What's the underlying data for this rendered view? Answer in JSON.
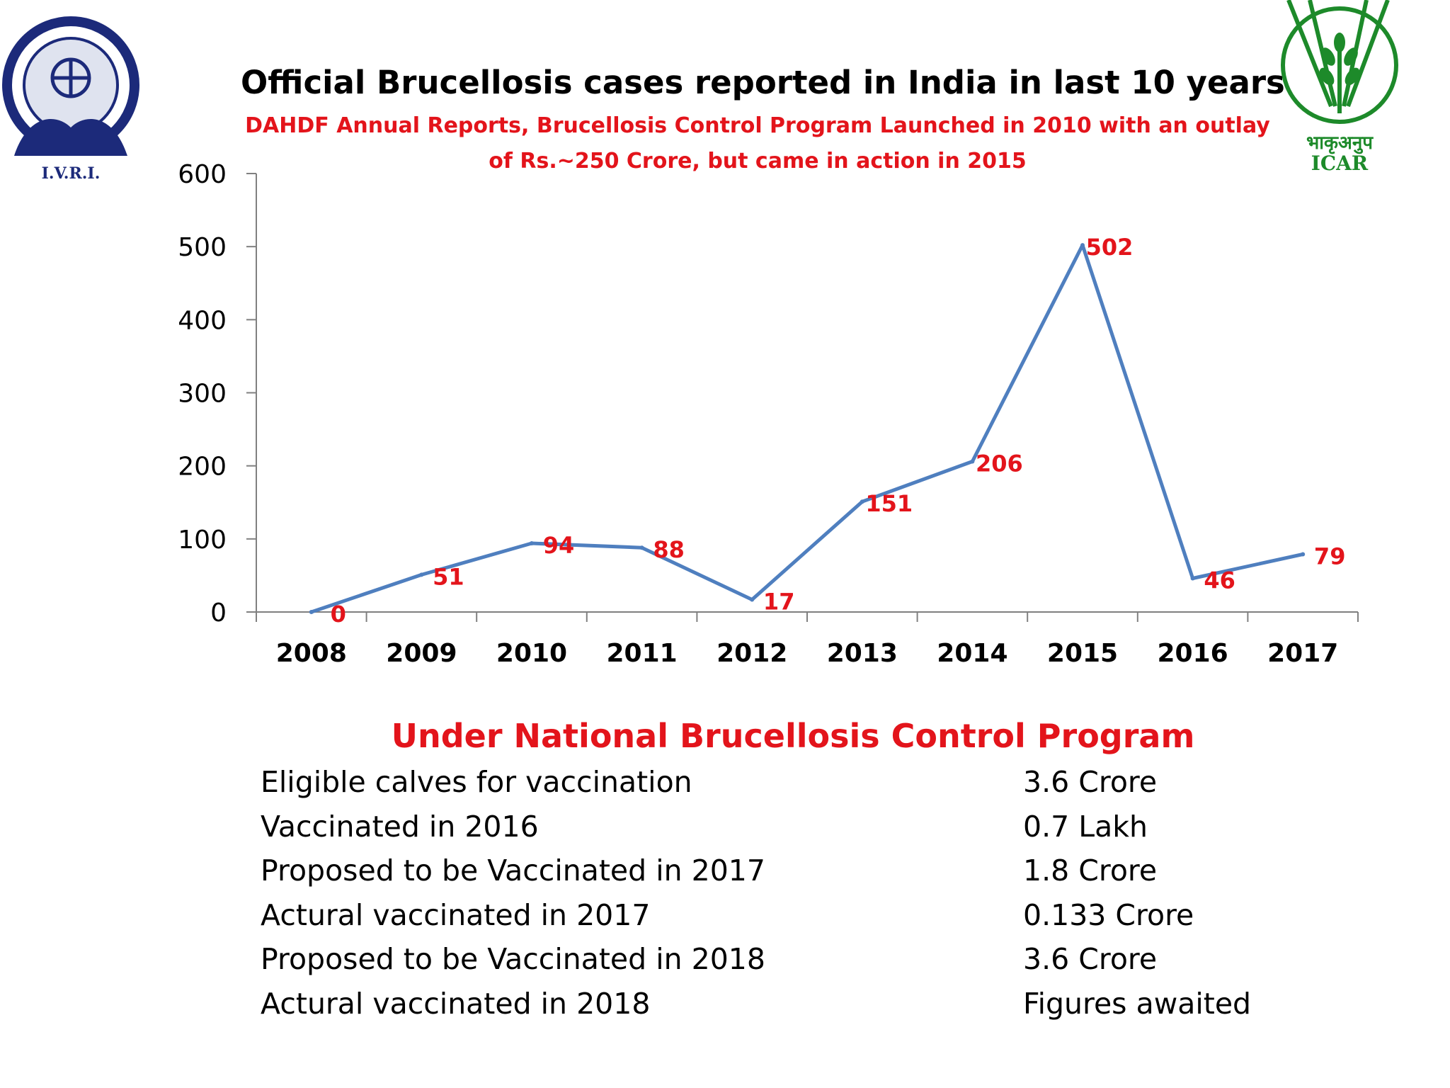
{
  "slide": {
    "title": "Official Brucellosis cases reported in India in last 10 years",
    "subtitle_line1": "DAHDF Annual Reports, Brucellosis Control Program Launched in 2010 with an outlay",
    "subtitle_line2": "of  Rs.~250 Crore, but came in action in 2015"
  },
  "logos": {
    "left": {
      "text": "I.V.R.I."
    },
    "right": {
      "devanagari": "भाकृअनुप",
      "text": "ICAR"
    }
  },
  "chart_data": {
    "type": "line",
    "title": "Official Brucellosis cases reported in India in last 10 years",
    "categories": [
      "2008",
      "2009",
      "2010",
      "2011",
      "2012",
      "2013",
      "2014",
      "2015",
      "2016",
      "2017"
    ],
    "series": [
      {
        "values": [
          0,
          51,
          94,
          88,
          17,
          151,
          206,
          502,
          46,
          79
        ]
      }
    ],
    "data_labels": [
      "0",
      "51",
      "94",
      "88",
      "17",
      "151",
      "206",
      "502",
      "46",
      "79"
    ],
    "ylim": [
      0,
      600
    ],
    "yticks": [
      "0",
      "100",
      "200",
      "300",
      "400",
      "500",
      "600"
    ],
    "xlabel": "",
    "ylabel": "",
    "grid": false,
    "line_color": "#4f7fbf",
    "label_color": "#e3141b"
  },
  "program": {
    "heading": "Under National Brucellosis Control Program",
    "rows": [
      {
        "label": "Eligible calves for vaccination",
        "value": "3.6 Crore"
      },
      {
        "label": "Vaccinated in 2016",
        "value": "0.7 Lakh"
      },
      {
        "label": "Proposed to be Vaccinated in 2017",
        "value": "1.8 Crore"
      },
      {
        "label": "Actural vaccinated in 2017",
        "value": "0.133 Crore"
      },
      {
        "label": "Proposed to be Vaccinated in 2018",
        "value": "3.6 Crore"
      },
      {
        "label": "Actural vaccinated in 2018",
        "value": "Figures awaited"
      }
    ]
  }
}
